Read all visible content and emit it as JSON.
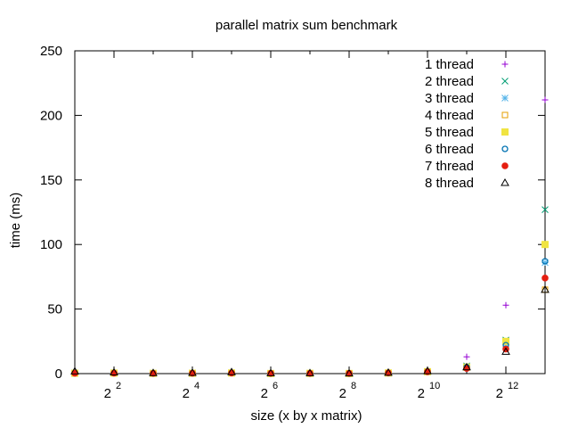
{
  "chart_data": {
    "type": "scatter",
    "title": "parallel matrix sum benchmark",
    "xlabel": "size (x by x matrix)",
    "ylabel": "time (ms)",
    "x_scale": "log2",
    "x": [
      2,
      4,
      8,
      16,
      32,
      64,
      128,
      256,
      512,
      1024,
      2048,
      4096,
      8192
    ],
    "xlim": [
      2,
      8192
    ],
    "ylim": [
      0,
      250
    ],
    "x_ticks": [
      {
        "value": 4,
        "base": "2",
        "exp": "2"
      },
      {
        "value": 16,
        "base": "2",
        "exp": "4"
      },
      {
        "value": 64,
        "base": "2",
        "exp": "6"
      },
      {
        "value": 256,
        "base": "2",
        "exp": "8"
      },
      {
        "value": 1024,
        "base": "2",
        "exp": "10"
      },
      {
        "value": 4096,
        "base": "2",
        "exp": "12"
      }
    ],
    "y_ticks": [
      "0",
      "50",
      "100",
      "150",
      "200",
      "250"
    ],
    "grid": false,
    "legend_position": "top-right",
    "series": [
      {
        "name": "1 thread",
        "marker": "plus",
        "color": "#9400d3",
        "values": [
          0.2,
          0.3,
          0.1,
          0.1,
          0.2,
          0.1,
          0.1,
          0.1,
          0.3,
          1.5,
          13,
          53,
          212
        ]
      },
      {
        "name": "2 thread",
        "marker": "cross",
        "color": "#009e73",
        "values": [
          0.3,
          0.3,
          0.2,
          0.2,
          0.4,
          0.1,
          0.1,
          0.1,
          0.4,
          1.2,
          6,
          26,
          127
        ]
      },
      {
        "name": "3 thread",
        "marker": "star",
        "color": "#56b4e9",
        "values": [
          0.5,
          0.5,
          0.2,
          0.3,
          0.5,
          0.1,
          0.2,
          0.1,
          0.5,
          1.3,
          5,
          22,
          86
        ]
      },
      {
        "name": "4 thread",
        "marker": "square-open",
        "color": "#e69f00",
        "values": [
          0.2,
          0.5,
          0.2,
          0.3,
          0.3,
          0.1,
          0.2,
          0.1,
          0.5,
          1.7,
          5,
          21,
          65
        ]
      },
      {
        "name": "5 thread",
        "marker": "square-filled",
        "color": "#f0e442",
        "values": [
          0.3,
          0.4,
          0.2,
          0.3,
          0.5,
          0.1,
          0.2,
          0.1,
          0.5,
          1.5,
          5,
          25,
          100
        ]
      },
      {
        "name": "6 thread",
        "marker": "circle-open",
        "color": "#0072b2",
        "values": [
          0.4,
          0.5,
          0.3,
          0.4,
          0.5,
          0.2,
          0.2,
          0.2,
          0.6,
          1.6,
          5,
          22,
          87
        ]
      },
      {
        "name": "7 thread",
        "marker": "circle-filled",
        "color": "#e51e10",
        "values": [
          0.3,
          0.4,
          0.2,
          0.3,
          0.5,
          0.2,
          0.2,
          0.2,
          0.6,
          1.4,
          4,
          19,
          74
        ]
      },
      {
        "name": "8 thread",
        "marker": "triangle-open",
        "color": "#000000",
        "values": [
          1.8,
          1.0,
          0.5,
          0.7,
          1.2,
          0.4,
          0.4,
          0.3,
          0.8,
          2.0,
          5,
          17,
          65
        ]
      }
    ]
  }
}
